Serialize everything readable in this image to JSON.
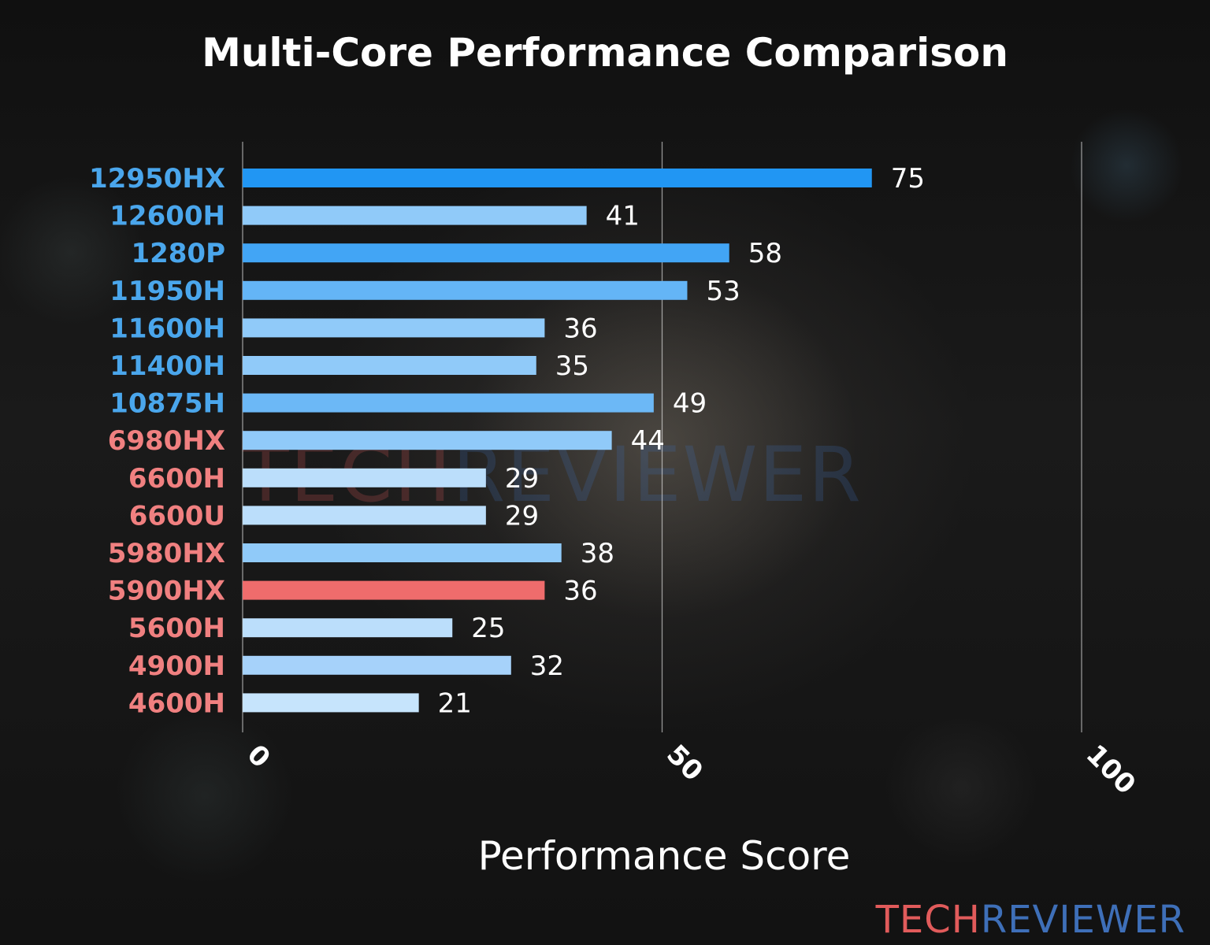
{
  "watermark": {
    "part1": "TECH",
    "part2": "REVIEWER",
    "part1_color": "#e15b5b",
    "part2_color": "#3e6fb8"
  },
  "chart_data": {
    "type": "bar",
    "orientation": "horizontal",
    "title": "Multi-Core Performance Comparison",
    "xlabel": "Performance Score",
    "ylabel": "",
    "xlim": [
      0,
      100
    ],
    "xticks": [
      0,
      50,
      100
    ],
    "grid": "vertical",
    "categories": [
      "12950HX",
      "12600H",
      "1280P",
      "11950H",
      "11600H",
      "11400H",
      "10875H",
      "6980HX",
      "6600H",
      "6600U",
      "5980HX",
      "5900HX",
      "5600H",
      "4900H",
      "4600H"
    ],
    "values": [
      75,
      41,
      58,
      53,
      36,
      35,
      49,
      44,
      29,
      29,
      38,
      36,
      25,
      32,
      21
    ],
    "label_colors": [
      "#4aa6ec",
      "#4aa6ec",
      "#4aa6ec",
      "#4aa6ec",
      "#4aa6ec",
      "#4aa6ec",
      "#4aa6ec",
      "#f08080",
      "#f08080",
      "#f08080",
      "#f08080",
      "#f08080",
      "#f08080",
      "#f08080",
      "#f08080"
    ],
    "bar_colors": [
      "#2196f3",
      "#90caf9",
      "#42a5f5",
      "#64b5f6",
      "#90caf9",
      "#90caf9",
      "#6cb8f6",
      "#90caf9",
      "#bbdefb",
      "#bbdefb",
      "#90caf9",
      "#ef6c6c",
      "#bbdefb",
      "#a6d2fa",
      "#c6e4fc"
    ]
  }
}
